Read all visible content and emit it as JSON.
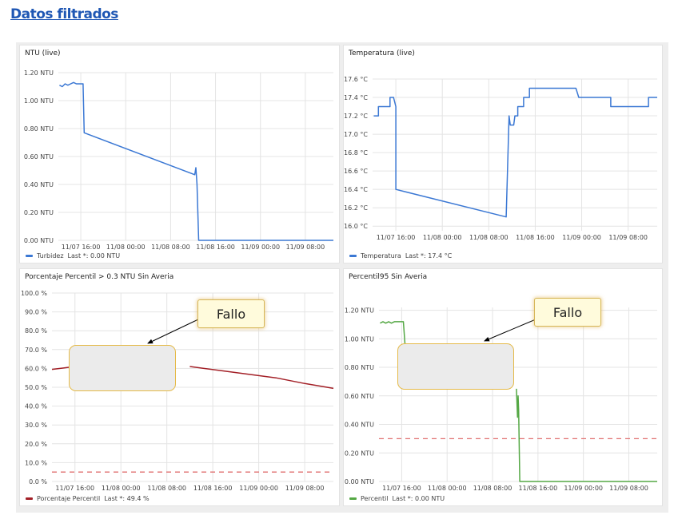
{
  "page": {
    "title": "Datos filtrados"
  },
  "panels": [
    {
      "title": "NTU (live)",
      "legend": {
        "name": "Turbidez",
        "last": "Last *: 0.00 NTU",
        "color": "#3b78d4"
      },
      "chart_data": {
        "type": "line",
        "x_tick_labels": [
          "11/07 16:00",
          "11/08 00:00",
          "11/08 08:00",
          "11/08 16:00",
          "11/09 00:00",
          "11/09 08:00"
        ],
        "y_tick_labels": [
          "0.00 NTU",
          "0.20 NTU",
          "0.40 NTU",
          "0.60 NTU",
          "0.80 NTU",
          "1.00 NTU",
          "1.20 NTU"
        ],
        "ylim": [
          0,
          1.2
        ],
        "xlim_hours": [
          -4,
          45
        ],
        "series": [
          {
            "name": "Turbidez",
            "color": "#3b78d4",
            "points": [
              [
                -3.8,
                1.11
              ],
              [
                -3.3,
                1.1
              ],
              [
                -2.8,
                1.12
              ],
              [
                -2.3,
                1.11
              ],
              [
                -1.8,
                1.12
              ],
              [
                -1.3,
                1.13
              ],
              [
                -0.8,
                1.12
              ],
              [
                -0.3,
                1.12
              ],
              [
                0.4,
                1.12
              ],
              [
                0.6,
                0.77
              ],
              [
                20.3,
                0.47
              ],
              [
                20.5,
                0.52
              ],
              [
                20.7,
                0.4
              ],
              [
                21.0,
                0.0
              ],
              [
                45,
                0.0
              ]
            ]
          }
        ]
      }
    },
    {
      "title": "Temperatura (live)",
      "legend": {
        "name": "Temperatura",
        "last": "Last *: 17.4 °C",
        "color": "#3b78d4"
      },
      "chart_data": {
        "type": "line",
        "x_tick_labels": [
          "11/07 16:00",
          "11/08 00:00",
          "11/08 08:00",
          "11/08 16:00",
          "11/09 00:00",
          "11/09 08:00"
        ],
        "y_tick_labels": [
          "16.0 °C",
          "16.2 °C",
          "16.4 °C",
          "16.6 °C",
          "16.8 °C",
          "17.0 °C",
          "17.2 °C",
          "17.4 °C",
          "17.6 °C"
        ],
        "ylim": [
          15.95,
          17.6
        ],
        "xlim_hours": [
          -4,
          45
        ],
        "series": [
          {
            "name": "Temperatura",
            "color": "#3b78d4",
            "points": [
              [
                -3.8,
                17.2
              ],
              [
                -3.0,
                17.2
              ],
              [
                -3.0,
                17.3
              ],
              [
                -1.0,
                17.3
              ],
              [
                -1.0,
                17.4
              ],
              [
                -0.4,
                17.4
              ],
              [
                0.0,
                17.3
              ],
              [
                0.0,
                16.4
              ],
              [
                19.0,
                16.1
              ],
              [
                19.5,
                17.2
              ],
              [
                19.7,
                17.1
              ],
              [
                20.3,
                17.1
              ],
              [
                20.5,
                17.2
              ],
              [
                21.0,
                17.2
              ],
              [
                21.0,
                17.3
              ],
              [
                22.0,
                17.3
              ],
              [
                22.0,
                17.4
              ],
              [
                23.0,
                17.4
              ],
              [
                23.0,
                17.5
              ],
              [
                31.0,
                17.5
              ],
              [
                31.5,
                17.4
              ],
              [
                37.0,
                17.4
              ],
              [
                37.0,
                17.3
              ],
              [
                43.5,
                17.3
              ],
              [
                43.5,
                17.4
              ],
              [
                45,
                17.4
              ]
            ]
          }
        ]
      }
    },
    {
      "title": "Porcentaje Percentil > 0.3 NTU Sin Averia",
      "legend": {
        "name": "Porcentaje Percentil",
        "last": "Last *: 49.4 %",
        "color": "#a32027"
      },
      "annotation": {
        "label": "Fallo"
      },
      "chart_data": {
        "type": "line",
        "x_tick_labels": [
          "11/07 16:00",
          "11/08 00:00",
          "11/08 08:00",
          "11/08 16:00",
          "11/09 00:00",
          "11/09 08:00"
        ],
        "y_tick_labels": [
          "0.0 %",
          "10.0 %",
          "20.0 %",
          "30.0 %",
          "40.0 %",
          "50.0 %",
          "60.0 %",
          "70.0 %",
          "80.0 %",
          "90.0 %",
          "100.0 %"
        ],
        "ylim": [
          0,
          100
        ],
        "xlim_hours": [
          -4,
          45
        ],
        "series": [
          {
            "name": "Porcentaje Percentil",
            "color": "#a32027",
            "points": [
              [
                -4,
                59.5
              ],
              [
                -2,
                60.2
              ],
              [
                0,
                61.0
              ],
              [
                3.0,
                61.5
              ]
            ]
          },
          {
            "name": "Porcentaje Percentil",
            "color": "#a32027",
            "points": [
              [
                20.0,
                61.0
              ],
              [
                25,
                59.0
              ],
              [
                30,
                57.0
              ],
              [
                35,
                55.0
              ],
              [
                40,
                52.0
              ],
              [
                45,
                49.4
              ]
            ]
          }
        ],
        "threshold": {
          "value": 5,
          "color": "#e07070"
        }
      }
    },
    {
      "title": "Percentil95 Sin Averia",
      "legend": {
        "name": "Percentil",
        "last": "Last *: 0.00 NTU",
        "color": "#55a845"
      },
      "annotation": {
        "label": "Fallo"
      },
      "chart_data": {
        "type": "line",
        "x_tick_labels": [
          "11/07 16:00",
          "11/08 00:00",
          "11/08 08:00",
          "11/08 16:00",
          "11/09 00:00",
          "11/09 08:00"
        ],
        "y_tick_labels": [
          "0.00 NTU",
          "0.20 NTU",
          "0.40 NTU",
          "0.60 NTU",
          "0.80 NTU",
          "1.00 NTU",
          "1.20 NTU"
        ],
        "ylim": [
          0,
          1.22
        ],
        "xlim_hours": [
          -4,
          45
        ],
        "series": [
          {
            "name": "Percentil",
            "color": "#55a845",
            "points": [
              [
                -3.8,
                1.11
              ],
              [
                -3.3,
                1.12
              ],
              [
                -2.8,
                1.11
              ],
              [
                -2.3,
                1.12
              ],
              [
                -1.8,
                1.11
              ],
              [
                -1.3,
                1.12
              ],
              [
                -0.8,
                1.12
              ],
              [
                -0.3,
                1.12
              ],
              [
                0.3,
                1.12
              ],
              [
                0.6,
                0.95
              ]
            ]
          },
          {
            "name": "Percentil",
            "color": "#55a845",
            "points": [
              [
                20.2,
                0.65
              ],
              [
                20.4,
                0.45
              ],
              [
                20.5,
                0.6
              ],
              [
                20.6,
                0.5
              ],
              [
                20.8,
                0.0
              ],
              [
                45,
                0.0
              ]
            ]
          }
        ],
        "threshold": {
          "value": 0.3,
          "color": "#e07070"
        }
      }
    }
  ]
}
